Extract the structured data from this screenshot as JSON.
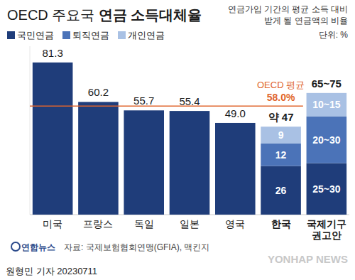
{
  "chart_data": {
    "type": "bar",
    "stacked": true,
    "orientation": "vertical",
    "data_labels": true,
    "tick_labels": "x",
    "grid": false,
    "legend": "top-left",
    "title": "OECD 주요국 연금 소득대체율",
    "subtitle": [
      "연금가입 기간의 평균 소득 대비",
      "받게 될 연금액의 비율"
    ],
    "unit": "단위: %",
    "categories": [
      "미국",
      "프랑스",
      "독일",
      "일본",
      "영국",
      "한국",
      "국제기구 권고안"
    ],
    "series": [
      {
        "name": "국민연금",
        "color": "#1f3d7a",
        "values": [
          81.3,
          60.2,
          55.7,
          55.4,
          49,
          26,
          27.5
        ],
        "value_labels": [
          "81.3",
          "60.2",
          "55.7",
          "55.4",
          "49.0",
          "26",
          "25~30"
        ]
      },
      {
        "name": "퇴직연금",
        "color": "#4b73b8",
        "values": [
          null,
          null,
          null,
          null,
          null,
          12,
          25
        ],
        "value_labels": [
          null,
          null,
          null,
          null,
          null,
          "12",
          "20~30"
        ]
      },
      {
        "name": "개인연금",
        "color": "#a9c1e4",
        "values": [
          null,
          null,
          null,
          null,
          null,
          9,
          12.5
        ],
        "value_labels": [
          null,
          null,
          null,
          null,
          null,
          "9",
          "10~15"
        ]
      }
    ],
    "total_labels": [
      {
        "category": "한국",
        "label": "약 47"
      },
      {
        "category": "국제기구 권고안",
        "label": "65~75"
      }
    ],
    "reference_line": {
      "name": "OECD 평균",
      "value": 58,
      "label": "58.0%",
      "color": "#e0642c"
    },
    "ylim": [
      0,
      90
    ],
    "source": "자료: 국제보험협회연맹(GFIA), 맥킨지",
    "logo": "연합뉴스",
    "watermark": "YONHAP NEWS",
    "credit": "원형민 기자 20230711"
  }
}
